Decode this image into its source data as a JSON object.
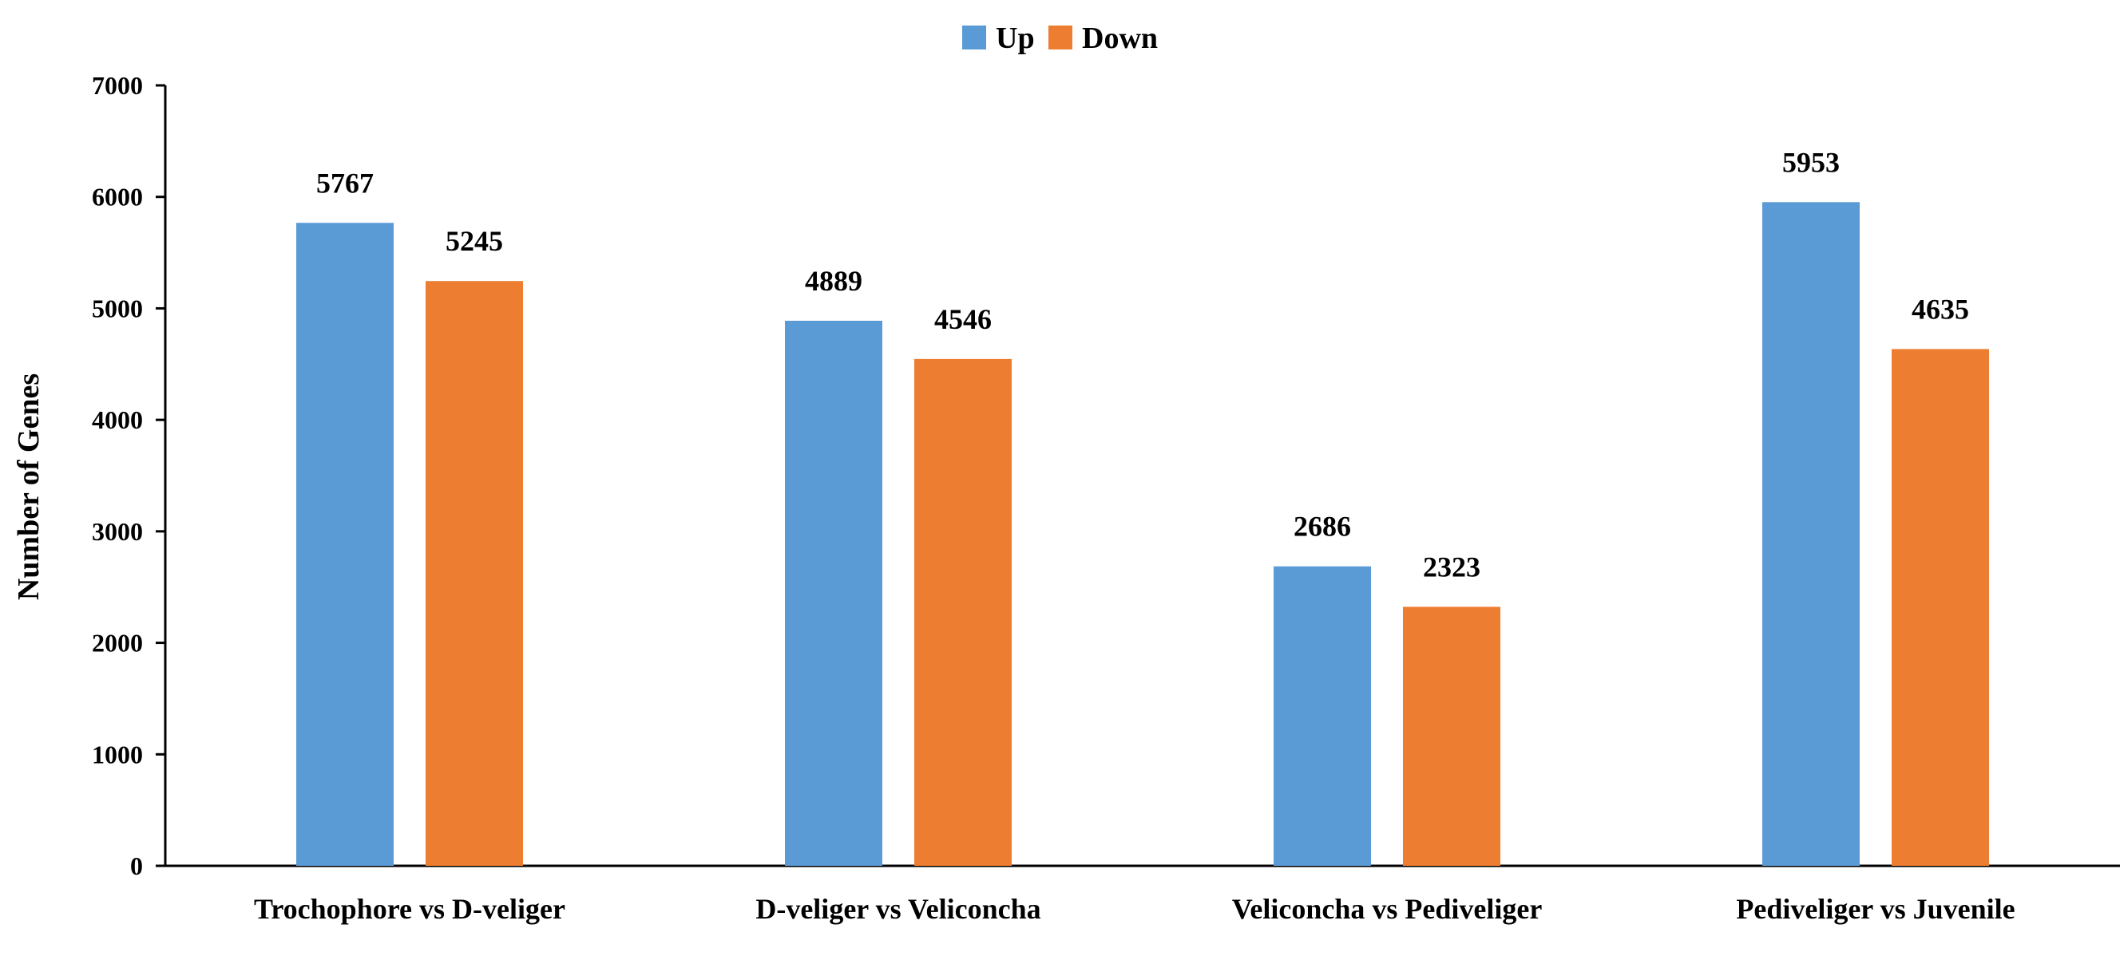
{
  "chart_data": {
    "type": "bar",
    "categories": [
      "Trochophore vs D-veliger",
      "D-veliger vs Veliconcha",
      "Veliconcha vs Pediveliger",
      "Pediveliger vs Juvenile"
    ],
    "series": [
      {
        "name": "Up",
        "color": "#5B9BD5",
        "values": [
          5767,
          4889,
          2686,
          5953
        ]
      },
      {
        "name": "Down",
        "color": "#ED7D31",
        "values": [
          5245,
          4546,
          2323,
          4635
        ]
      }
    ],
    "title": "",
    "xlabel": "",
    "ylabel": "Number of Genes",
    "ylim": [
      0,
      7000
    ],
    "yticks": [
      0,
      1000,
      2000,
      3000,
      4000,
      5000,
      6000,
      7000
    ],
    "grid": false,
    "legend_position": "top-center",
    "data_labels": true
  }
}
